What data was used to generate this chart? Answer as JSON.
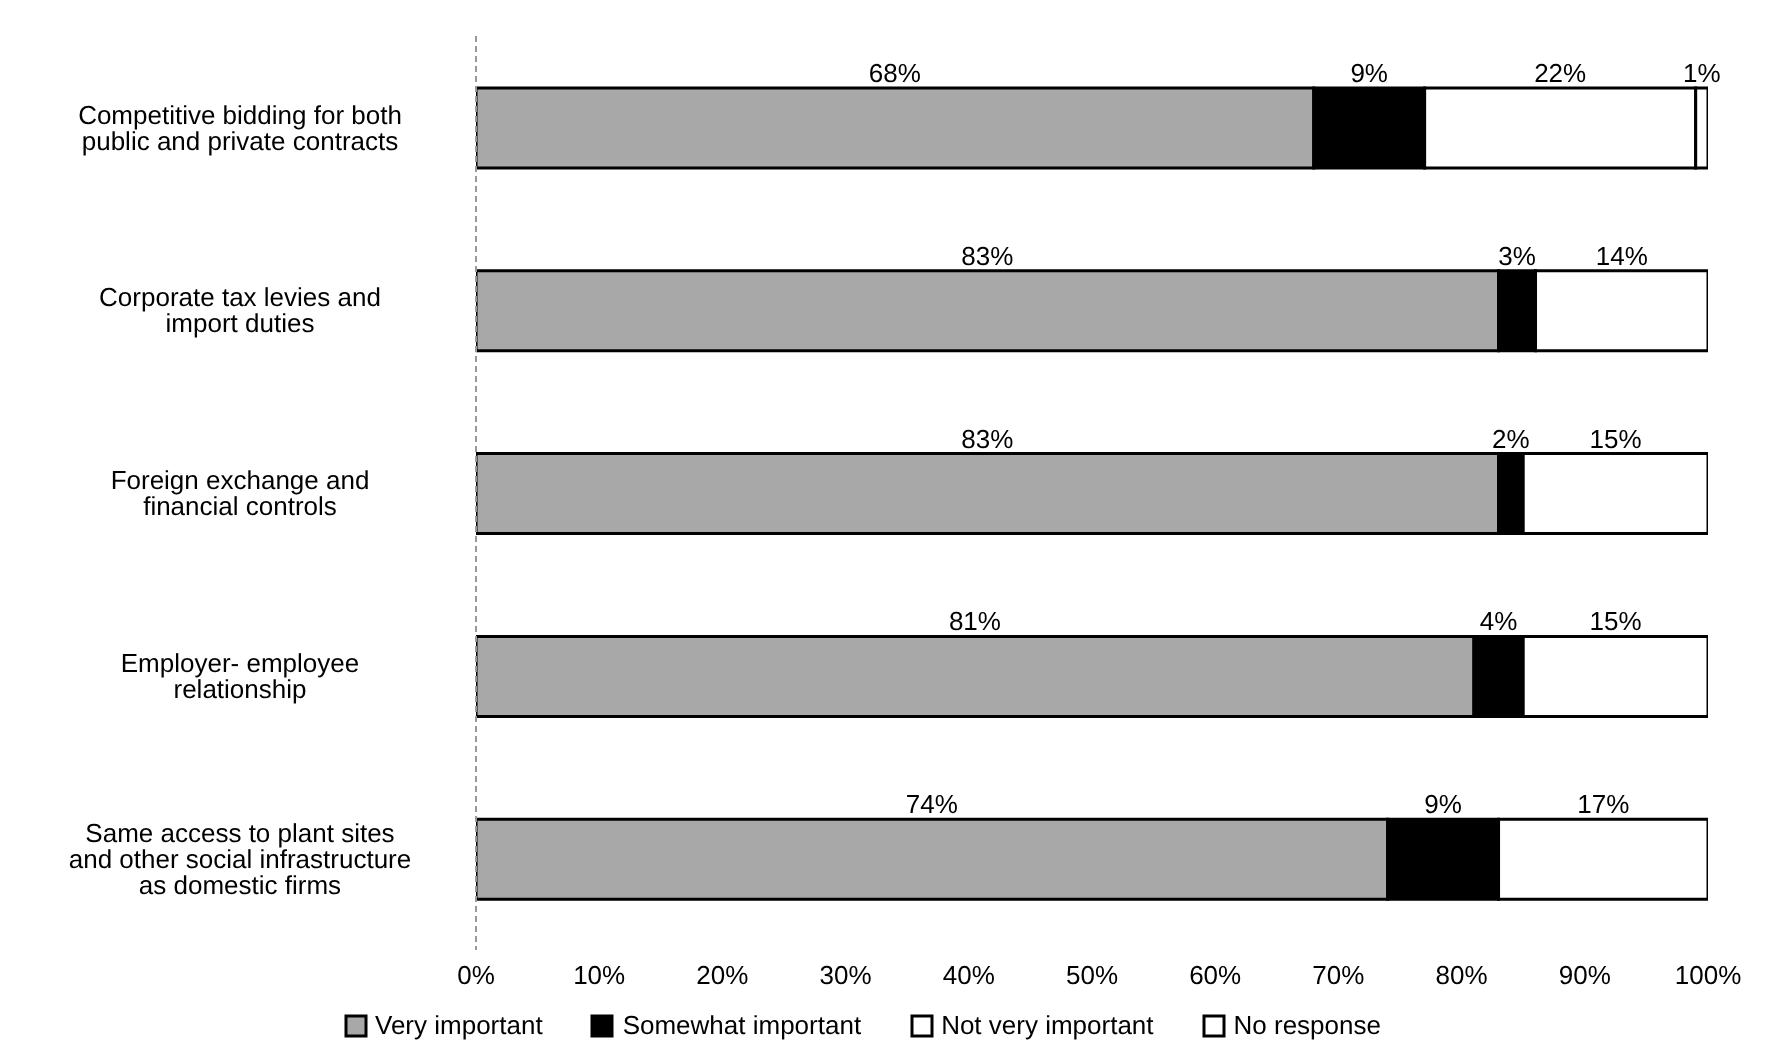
{
  "chart_data": {
    "type": "bar",
    "orientation": "horizontal",
    "stacked": true,
    "categories": [
      "Competitive bidding for both public and private contracts",
      "Corporate tax levies and import duties",
      "Foreign exchange and financial controls",
      "Employer- employee relationship",
      "Same access to plant sites and other social infrastructure as domestic firms"
    ],
    "series": [
      {
        "name": "Very important",
        "color": "#a8a8a8",
        "values": [
          68,
          83,
          83,
          81,
          74
        ],
        "value_labels": [
          "68%",
          "83%",
          "83%",
          "81%",
          "74%"
        ]
      },
      {
        "name": "Somewhat important",
        "color": "#000000",
        "values": [
          9,
          3,
          2,
          4,
          9
        ],
        "value_labels": [
          "9%",
          "3%",
          "2%",
          "4%",
          "9%"
        ]
      },
      {
        "name": "Not very important",
        "color": "#ffffff",
        "values": [
          22,
          14,
          15,
          15,
          17
        ],
        "value_labels": [
          "22%",
          "14%",
          "15%",
          "15%",
          "17%"
        ]
      },
      {
        "name": "No response",
        "color": "#ffffff",
        "values": [
          1,
          null,
          null,
          null,
          null
        ],
        "value_labels": [
          "1%",
          null,
          null,
          null,
          null
        ]
      }
    ],
    "xlim": [
      0,
      100
    ],
    "xticks": [
      {
        "value": 0,
        "label": "0%"
      },
      {
        "value": 10,
        "label": "10%"
      },
      {
        "value": 20,
        "label": "20%"
      },
      {
        "value": 30,
        "label": "30%"
      },
      {
        "value": 40,
        "label": "40%"
      },
      {
        "value": 50,
        "label": "50%"
      },
      {
        "value": 60,
        "label": "60%"
      },
      {
        "value": 70,
        "label": "70%"
      },
      {
        "value": 80,
        "label": "80%"
      },
      {
        "value": 90,
        "label": "90%"
      },
      {
        "value": 100,
        "label": "100%"
      }
    ],
    "legend": "bottom"
  }
}
